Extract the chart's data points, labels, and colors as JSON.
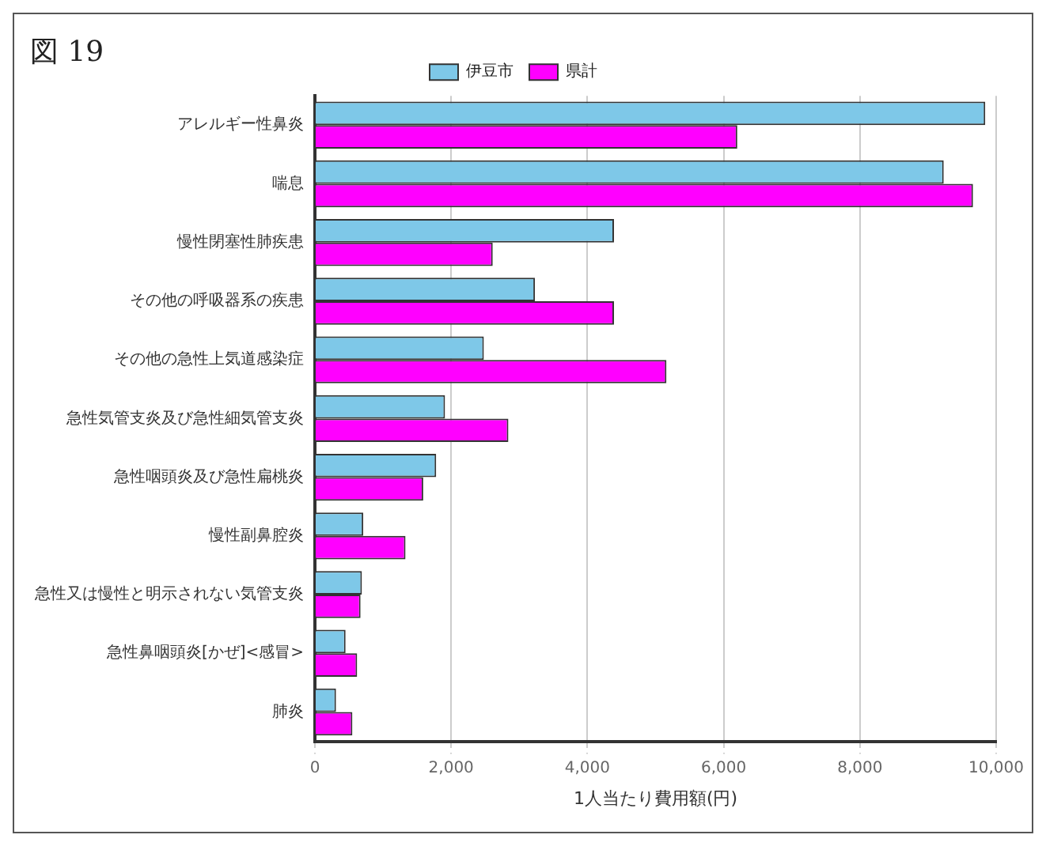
{
  "chart_data": {
    "type": "bar",
    "orientation": "horizontal",
    "title": "図 19",
    "xlabel": "1人当たり費用額(円)",
    "categories": [
      "アレルギー性鼻炎",
      "喘息",
      "慢性閉塞性肺疾患",
      "その他の呼吸器系の疾患",
      "その他の急性上気道感染症",
      "急性気管支炎及び急性細気管支炎",
      "急性咽頭炎及び急性扁桃炎",
      "慢性副鼻腔炎",
      "急性又は慢性と明示されない気管支炎",
      "急性鼻咽頭炎[かぜ]<感冒>",
      "肺炎"
    ],
    "series": [
      {
        "name": "伊豆市",
        "color": "#7ec8e8",
        "values": [
          9840,
          9230,
          4390,
          3230,
          2480,
          1910,
          1780,
          710,
          690,
          450,
          310
        ]
      },
      {
        "name": "県計",
        "color": "#ff00ff",
        "values": [
          6200,
          9660,
          2610,
          4390,
          5160,
          2840,
          1590,
          1330,
          670,
          620,
          550
        ]
      }
    ],
    "xlim": [
      0,
      10000
    ],
    "xticks": [
      0,
      {
        "value": 2000,
        "label": "2,000"
      },
      {
        "value": 4000,
        "label": "4,000"
      },
      {
        "value": 6000,
        "label": "6,000"
      },
      {
        "value": 8000,
        "label": "8,000"
      },
      {
        "value": 10000,
        "label": "10,000"
      }
    ],
    "grid": "x",
    "legend": "top"
  }
}
